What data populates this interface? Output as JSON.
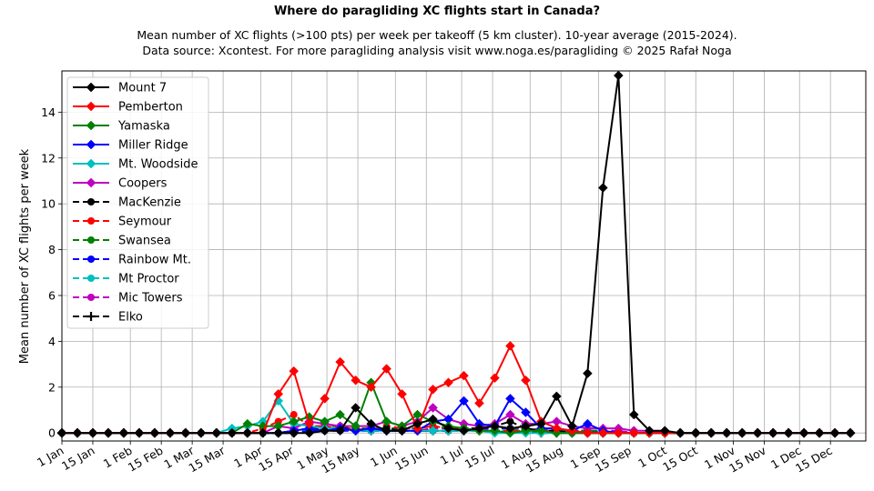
{
  "chart_data": {
    "type": "line",
    "title": "Where do paragliding XC flights start in Canada?",
    "subtitle_lines": [
      "Mean number of XC flights (>100 pts) per week per takeoff (5 km cluster). 10-year average (2015-2024).",
      "Data source: Xcontest. For more paragliding analysis visit www.noga.es/paragliding © 2025 Rafał Noga"
    ],
    "ylabel": "Mean number of XC flights per week",
    "ylim": [
      -0.35,
      15.8
    ],
    "yticks": [
      0,
      2,
      4,
      6,
      8,
      10,
      12,
      14
    ],
    "x_tick_labels": [
      "1 Jan",
      "15 Jan",
      "1 Feb",
      "15 Feb",
      "1 Mar",
      "15 Mar",
      "1 Apr",
      "15 Apr",
      "1 May",
      "15 May",
      "1 Jun",
      "15 Jun",
      "1 Jul",
      "15 Jul",
      "1 Aug",
      "15 Aug",
      "1 Sep",
      "15 Sep",
      "1 Oct",
      "15 Oct",
      "1 Nov",
      "15 Nov",
      "1 Dec",
      "15 Dec"
    ],
    "x_tick_days": [
      1,
      15,
      32,
      46,
      60,
      74,
      91,
      105,
      121,
      135,
      152,
      166,
      182,
      196,
      213,
      227,
      244,
      258,
      274,
      288,
      305,
      319,
      335,
      349
    ],
    "x_day_of_year": [
      1,
      8,
      15,
      22,
      29,
      36,
      43,
      50,
      57,
      64,
      71,
      78,
      85,
      92,
      99,
      106,
      113,
      120,
      127,
      134,
      141,
      148,
      155,
      162,
      169,
      176,
      183,
      190,
      197,
      204,
      211,
      218,
      225,
      232,
      239,
      246,
      253,
      260,
      267,
      274,
      281,
      288,
      295,
      302,
      309,
      316,
      323,
      330,
      337,
      344,
      351,
      358
    ],
    "grid": true,
    "legend_position": "top-left",
    "series": [
      {
        "name": "Mount 7",
        "color": "#000000",
        "dash": false,
        "marker": "diamond",
        "values": [
          0,
          0,
          0,
          0,
          0,
          0,
          0,
          0,
          0,
          0,
          0,
          0,
          0,
          0,
          0,
          0,
          0,
          0.1,
          0.1,
          1.1,
          0.4,
          0.1,
          0.1,
          0.4,
          0.6,
          0.2,
          0.1,
          0.2,
          0.3,
          0.2,
          0.3,
          0.4,
          1.6,
          0.3,
          2.6,
          10.7,
          15.6,
          0.8,
          0.1,
          0.1,
          0,
          0,
          0,
          0,
          0,
          0,
          0,
          0,
          0,
          0,
          0,
          0
        ]
      },
      {
        "name": "Pemberton",
        "color": "#ff0000",
        "dash": false,
        "marker": "diamond",
        "values": [
          0,
          0,
          0,
          0,
          0,
          0,
          0,
          0,
          0,
          0,
          0,
          0,
          0,
          0,
          1.7,
          2.7,
          0.4,
          1.5,
          3.1,
          2.3,
          2.0,
          2.8,
          1.7,
          0.2,
          1.9,
          2.2,
          2.5,
          1.3,
          2.4,
          3.8,
          2.3,
          0.5,
          0.2,
          0.1,
          0,
          0,
          0,
          0,
          0,
          0,
          0,
          0,
          0,
          0,
          0,
          0,
          0,
          0,
          0,
          0,
          0,
          0
        ]
      },
      {
        "name": "Yamaska",
        "color": "#008000",
        "dash": false,
        "marker": "diamond",
        "values": [
          0,
          0,
          0,
          0,
          0,
          0,
          0,
          0,
          0,
          0,
          0,
          0,
          0.4,
          0.3,
          0.3,
          0.5,
          0.7,
          0.5,
          0.8,
          0.3,
          2.2,
          0.5,
          0.3,
          0.8,
          0.5,
          0.3,
          0.2,
          0.1,
          0.1,
          0,
          0.1,
          0.1,
          0,
          0,
          0,
          0,
          0,
          0,
          0,
          0,
          0,
          0,
          0,
          0,
          0,
          0,
          0,
          0,
          0,
          0,
          0,
          0
        ]
      },
      {
        "name": "Miller Ridge",
        "color": "#0000ff",
        "dash": false,
        "marker": "diamond",
        "values": [
          0,
          0,
          0,
          0,
          0,
          0,
          0,
          0,
          0,
          0,
          0,
          0,
          0,
          0,
          0,
          0.1,
          0.2,
          0.1,
          0.2,
          0.1,
          0.2,
          0.1,
          0.1,
          0.1,
          0.5,
          0.6,
          1.4,
          0.4,
          0.3,
          1.5,
          0.9,
          0.2,
          0.2,
          0.1,
          0.4,
          0.1,
          0,
          0,
          0,
          0,
          0,
          0,
          0,
          0,
          0,
          0,
          0,
          0,
          0,
          0,
          0,
          0
        ]
      },
      {
        "name": "Mt. Woodside",
        "color": "#00bfbf",
        "dash": false,
        "marker": "diamond",
        "values": [
          0,
          0,
          0,
          0,
          0,
          0,
          0,
          0,
          0,
          0,
          0,
          0.2,
          0.3,
          0.5,
          1.4,
          0.4,
          0.3,
          0.2,
          0.2,
          0.1,
          0.1,
          0.1,
          0.1,
          0.1,
          0.1,
          0.1,
          0.1,
          0.1,
          0,
          0,
          0,
          0,
          0,
          0,
          0,
          0,
          0,
          0,
          0,
          0,
          0,
          0,
          0,
          0,
          0,
          0,
          0,
          0,
          0,
          0,
          0,
          0
        ]
      },
      {
        "name": "Coopers",
        "color": "#bf00bf",
        "dash": false,
        "marker": "diamond",
        "values": [
          0,
          0,
          0,
          0,
          0,
          0,
          0,
          0,
          0,
          0,
          0,
          0,
          0,
          0,
          0.3,
          0.2,
          0.5,
          0.4,
          0.3,
          0.3,
          0.3,
          0.5,
          0.3,
          0.5,
          1.1,
          0.6,
          0.4,
          0.3,
          0.4,
          0.8,
          0.4,
          0.4,
          0.5,
          0.3,
          0.2,
          0.2,
          0.2,
          0.1,
          0.1,
          0,
          0,
          0,
          0,
          0,
          0,
          0,
          0,
          0,
          0,
          0,
          0,
          0
        ]
      },
      {
        "name": "MacKenzie",
        "color": "#000000",
        "dash": true,
        "marker": "circle",
        "values": [
          0,
          0,
          0,
          0,
          0,
          0,
          0,
          0,
          0,
          0,
          0,
          0,
          0,
          0,
          0,
          0.1,
          0.2,
          0.2,
          0.2,
          0.2,
          0.1,
          0.2,
          0.1,
          0.1,
          0.1,
          0.1,
          0.2,
          0.2,
          0.3,
          0.5,
          0.2,
          0.1,
          0.1,
          0,
          0,
          0,
          0,
          0,
          0,
          0,
          0,
          0,
          0,
          0,
          0,
          0,
          0,
          0,
          0,
          0,
          0,
          0
        ]
      },
      {
        "name": "Seymour",
        "color": "#ff0000",
        "dash": true,
        "marker": "circle",
        "values": [
          0,
          0,
          0,
          0,
          0,
          0,
          0,
          0,
          0,
          0,
          0,
          0,
          0,
          0.2,
          0.5,
          0.8,
          0.3,
          0.3,
          0.2,
          0.2,
          0.1,
          0.3,
          0.2,
          0.2,
          0.3,
          0.2,
          0.2,
          0.1,
          0.1,
          0.1,
          0.1,
          0.1,
          0.1,
          0,
          0,
          0,
          0,
          0,
          0,
          0,
          0,
          0,
          0,
          0,
          0,
          0,
          0,
          0,
          0,
          0,
          0,
          0
        ]
      },
      {
        "name": "Swansea",
        "color": "#008000",
        "dash": true,
        "marker": "circle",
        "values": [
          0,
          0,
          0,
          0,
          0,
          0,
          0,
          0,
          0,
          0,
          0,
          0,
          0,
          0,
          0,
          0.1,
          0.2,
          0.3,
          0.3,
          0.2,
          0.2,
          0.2,
          0.2,
          0.2,
          0.3,
          0.2,
          0.2,
          0.2,
          0.3,
          0.2,
          0.2,
          0.1,
          0.1,
          0.1,
          0.1,
          0.1,
          0,
          0,
          0,
          0,
          0,
          0,
          0,
          0,
          0,
          0,
          0,
          0,
          0,
          0,
          0,
          0
        ]
      },
      {
        "name": "Rainbow Mt.",
        "color": "#0000ff",
        "dash": true,
        "marker": "circle",
        "values": [
          0,
          0,
          0,
          0,
          0,
          0,
          0,
          0,
          0,
          0,
          0,
          0,
          0,
          0,
          0,
          0,
          0.1,
          0.1,
          0.1,
          0.1,
          0.1,
          0.1,
          0.1,
          0.1,
          0.1,
          0.1,
          0.2,
          0.2,
          0.2,
          0.2,
          0.2,
          0.1,
          0.1,
          0.1,
          0.1,
          0,
          0,
          0,
          0,
          0,
          0,
          0,
          0,
          0,
          0,
          0,
          0,
          0,
          0,
          0,
          0,
          0
        ]
      },
      {
        "name": "Mt Proctor",
        "color": "#00bfbf",
        "dash": true,
        "marker": "circle",
        "values": [
          0,
          0,
          0,
          0,
          0,
          0,
          0,
          0,
          0,
          0,
          0,
          0,
          0,
          0,
          0,
          0.1,
          0.1,
          0.1,
          0.1,
          0.2,
          0.1,
          0.1,
          0.1,
          0.1,
          0.1,
          0.1,
          0.1,
          0.1,
          0.1,
          0.1,
          0.1,
          0.1,
          0.1,
          0,
          0,
          0,
          0,
          0,
          0,
          0,
          0,
          0,
          0,
          0,
          0,
          0,
          0,
          0,
          0,
          0,
          0,
          0
        ]
      },
      {
        "name": "Mic Towers",
        "color": "#bf00bf",
        "dash": true,
        "marker": "circle",
        "values": [
          0,
          0,
          0,
          0,
          0,
          0,
          0,
          0,
          0,
          0,
          0,
          0,
          0,
          0,
          0,
          0.1,
          0.1,
          0.2,
          0.2,
          0.1,
          0.1,
          0.1,
          0.1,
          0.1,
          0.2,
          0.2,
          0.2,
          0.1,
          0.2,
          0.2,
          0.1,
          0.2,
          0.1,
          0.1,
          0.1,
          0.1,
          0.1,
          0,
          0,
          0,
          0,
          0,
          0,
          0,
          0,
          0,
          0,
          0,
          0,
          0,
          0,
          0
        ]
      },
      {
        "name": "Elko",
        "color": "#000000",
        "dash": true,
        "marker": "plus",
        "values": [
          0,
          0,
          0,
          0,
          0,
          0,
          0,
          0,
          0,
          0,
          0,
          0,
          0,
          0,
          0,
          0,
          0.1,
          0.2,
          0.2,
          0.1,
          0.1,
          0.1,
          0.1,
          0.1,
          0.1,
          0.1,
          0.1,
          0.1,
          0.1,
          0.1,
          0.1,
          0,
          0,
          0,
          0,
          0,
          0,
          0,
          0,
          0,
          0,
          0,
          0,
          0,
          0,
          0,
          0,
          0,
          0,
          0,
          0,
          0
        ]
      }
    ]
  }
}
